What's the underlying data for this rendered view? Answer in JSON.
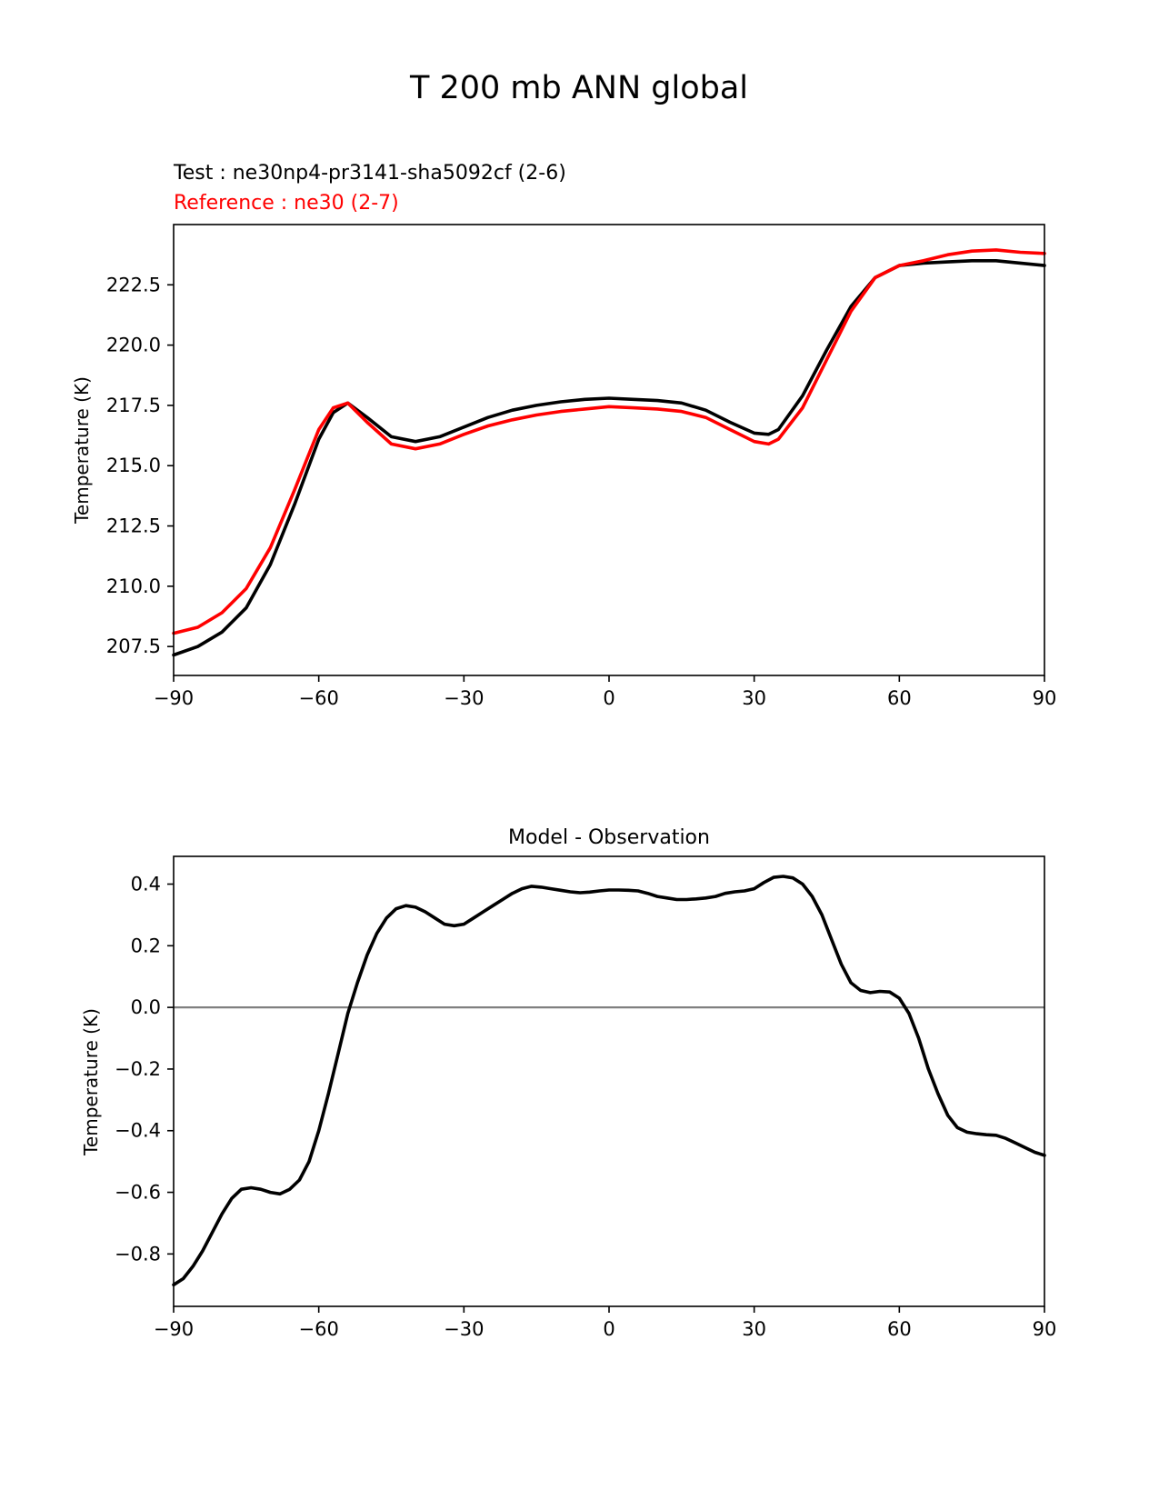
{
  "figure": {
    "suptitle": "T 200 mb ANN global",
    "test_label": "Test : ne30np4-pr3141-sha5092cf (2-6)",
    "reference_label": "Reference : ne30 (2-7)"
  },
  "colors": {
    "test": "#000000",
    "reference": "#ff0000",
    "zero_line": "#808080"
  },
  "chart_data": [
    {
      "type": "line",
      "title": "",
      "xlabel": "",
      "ylabel": "Temperature (K)",
      "xlim": [
        -90,
        90
      ],
      "ylim": [
        206.3,
        225.0
      ],
      "xticks": [
        -90,
        -60,
        -30,
        0,
        30,
        60,
        90
      ],
      "xtick_labels": [
        "−90",
        "−60",
        "−30",
        "0",
        "30",
        "60",
        "90"
      ],
      "yticks": [
        207.5,
        210.0,
        212.5,
        215.0,
        217.5,
        220.0,
        222.5
      ],
      "ytick_labels": [
        "207.5",
        "210.0",
        "212.5",
        "215.0",
        "217.5",
        "220.0",
        "222.5"
      ],
      "x": [
        -90,
        -85,
        -80,
        -75,
        -70,
        -65,
        -60,
        -57,
        -54,
        -50,
        -45,
        -40,
        -35,
        -30,
        -25,
        -20,
        -15,
        -10,
        -5,
        0,
        5,
        10,
        15,
        20,
        25,
        30,
        33,
        35,
        40,
        45,
        50,
        55,
        60,
        65,
        70,
        75,
        80,
        85,
        90
      ],
      "series": [
        {
          "name": "Test : ne30np4-pr3141-sha5092cf (2-6)",
          "color": "#000000",
          "values": [
            207.15,
            207.5,
            208.1,
            209.1,
            210.9,
            213.4,
            216.1,
            217.2,
            217.6,
            217.0,
            216.2,
            216.0,
            216.2,
            216.6,
            217.0,
            217.3,
            217.5,
            217.65,
            217.75,
            217.8,
            217.75,
            217.7,
            217.6,
            217.3,
            216.8,
            216.35,
            216.3,
            216.5,
            217.9,
            219.8,
            221.6,
            222.8,
            223.3,
            223.4,
            223.45,
            223.5,
            223.5,
            223.4,
            223.3
          ]
        },
        {
          "name": "Reference : ne30 (2-7)",
          "color": "#ff0000",
          "values": [
            208.05,
            208.3,
            208.9,
            209.9,
            211.6,
            214.0,
            216.5,
            217.4,
            217.6,
            216.8,
            215.9,
            215.7,
            215.9,
            216.3,
            216.65,
            216.9,
            217.1,
            217.25,
            217.35,
            217.45,
            217.4,
            217.35,
            217.25,
            217.0,
            216.5,
            216.0,
            215.9,
            216.1,
            217.4,
            219.4,
            221.4,
            222.8,
            223.3,
            223.5,
            223.75,
            223.9,
            223.95,
            223.85,
            223.8
          ]
        }
      ]
    },
    {
      "type": "line",
      "title": "Model - Observation",
      "xlabel": "",
      "ylabel": "Temperature (K)",
      "xlim": [
        -90,
        90
      ],
      "ylim": [
        -0.97,
        0.49
      ],
      "xticks": [
        -90,
        -60,
        -30,
        0,
        30,
        60,
        90
      ],
      "xtick_labels": [
        "−90",
        "−60",
        "−30",
        "0",
        "30",
        "60",
        "90"
      ],
      "yticks": [
        -0.8,
        -0.6,
        -0.4,
        -0.2,
        0.0,
        0.2,
        0.4
      ],
      "ytick_labels": [
        "−0.8",
        "−0.6",
        "−0.4",
        "−0.2",
        "0.0",
        "0.2",
        "0.4"
      ],
      "hline": 0.0,
      "x": [
        -90,
        -88,
        -86,
        -84,
        -82,
        -80,
        -78,
        -76,
        -74,
        -72,
        -70,
        -68,
        -66,
        -64,
        -62,
        -60,
        -58,
        -56,
        -54,
        -52,
        -50,
        -48,
        -46,
        -44,
        -42,
        -40,
        -38,
        -36,
        -34,
        -32,
        -30,
        -28,
        -26,
        -24,
        -22,
        -20,
        -18,
        -16,
        -14,
        -12,
        -10,
        -8,
        -6,
        -4,
        -2,
        0,
        2,
        4,
        6,
        8,
        10,
        12,
        14,
        16,
        18,
        20,
        22,
        24,
        26,
        28,
        30,
        32,
        34,
        36,
        38,
        40,
        42,
        44,
        46,
        48,
        50,
        52,
        54,
        56,
        58,
        60,
        62,
        64,
        66,
        68,
        70,
        72,
        74,
        76,
        78,
        80,
        82,
        84,
        86,
        88,
        90
      ],
      "series": [
        {
          "name": "Model - Observation",
          "color": "#000000",
          "values": [
            -0.9,
            -0.88,
            -0.84,
            -0.79,
            -0.73,
            -0.67,
            -0.62,
            -0.59,
            -0.585,
            -0.59,
            -0.6,
            -0.605,
            -0.59,
            -0.56,
            -0.5,
            -0.4,
            -0.28,
            -0.15,
            -0.02,
            0.08,
            0.17,
            0.24,
            0.29,
            0.32,
            0.33,
            0.325,
            0.31,
            0.29,
            0.27,
            0.265,
            0.27,
            0.29,
            0.31,
            0.33,
            0.35,
            0.37,
            0.385,
            0.393,
            0.39,
            0.385,
            0.38,
            0.375,
            0.372,
            0.374,
            0.378,
            0.381,
            0.381,
            0.38,
            0.378,
            0.37,
            0.36,
            0.355,
            0.35,
            0.35,
            0.352,
            0.355,
            0.36,
            0.37,
            0.375,
            0.378,
            0.385,
            0.405,
            0.422,
            0.425,
            0.42,
            0.4,
            0.36,
            0.3,
            0.22,
            0.14,
            0.08,
            0.055,
            0.048,
            0.052,
            0.05,
            0.03,
            -0.02,
            -0.1,
            -0.2,
            -0.28,
            -0.35,
            -0.39,
            -0.405,
            -0.41,
            -0.413,
            -0.415,
            -0.425,
            -0.44,
            -0.455,
            -0.47,
            -0.48
          ]
        }
      ]
    }
  ]
}
